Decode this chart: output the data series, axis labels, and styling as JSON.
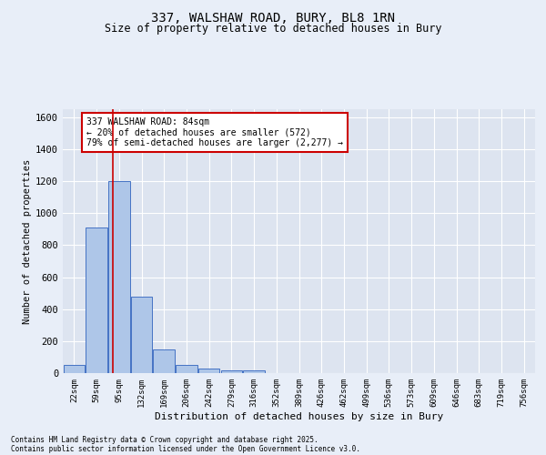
{
  "title_line1": "337, WALSHAW ROAD, BURY, BL8 1RN",
  "title_line2": "Size of property relative to detached houses in Bury",
  "xlabel": "Distribution of detached houses by size in Bury",
  "ylabel": "Number of detached properties",
  "footer_line1": "Contains HM Land Registry data © Crown copyright and database right 2025.",
  "footer_line2": "Contains public sector information licensed under the Open Government Licence v3.0.",
  "annotation_line1": "337 WALSHAW ROAD: 84sqm",
  "annotation_line2": "← 20% of detached houses are smaller (572)",
  "annotation_line3": "79% of semi-detached houses are larger (2,277) →",
  "bar_labels": [
    "22sqm",
    "59sqm",
    "95sqm",
    "132sqm",
    "169sqm",
    "206sqm",
    "242sqm",
    "279sqm",
    "316sqm",
    "352sqm",
    "389sqm",
    "426sqm",
    "462sqm",
    "499sqm",
    "536sqm",
    "573sqm",
    "609sqm",
    "646sqm",
    "683sqm",
    "719sqm",
    "756sqm"
  ],
  "bar_values": [
    50,
    910,
    1200,
    480,
    150,
    50,
    30,
    15,
    15,
    0,
    0,
    0,
    0,
    0,
    0,
    0,
    0,
    0,
    0,
    0,
    0
  ],
  "bar_color": "#aec6e8",
  "bar_edgecolor": "#4472c4",
  "vline_color": "#cc0000",
  "vline_x_index": 1.72,
  "ylim": [
    0,
    1650
  ],
  "yticks": [
    0,
    200,
    400,
    600,
    800,
    1000,
    1200,
    1400,
    1600
  ],
  "bg_color": "#e8eef8",
  "plot_bg_color": "#dde4f0",
  "grid_color": "#ffffff",
  "annotation_box_color": "#cc0000"
}
